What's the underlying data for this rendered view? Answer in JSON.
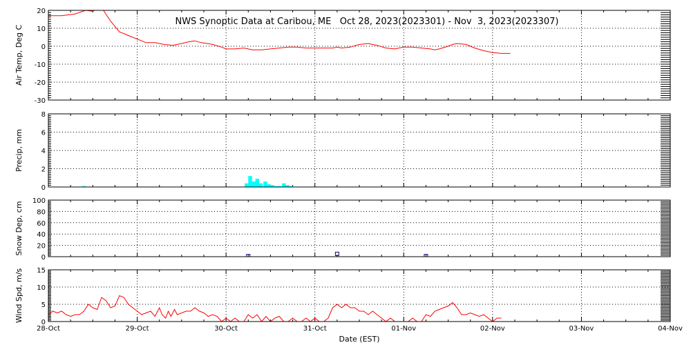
{
  "chart_data": {
    "type": "line",
    "title": "NWS Synoptic Data at Caribou, ME   Oct 28, 2023(2023301) - Nov  3, 2023(2023307)",
    "xlabel": "Date (EST)",
    "x_range": [
      "28-Oct",
      "04-Nov"
    ],
    "x_ticks": [
      "28-Oct",
      "29-Oct",
      "30-Oct",
      "31-Oct",
      "01-Nov",
      "02-Nov",
      "03-Nov",
      "04-Nov"
    ],
    "x_unit": "days since 28-Oct 00:00",
    "grid": true,
    "colors": {
      "temp": "#ff0000",
      "precip": "#00ffff",
      "snow": "#000080",
      "wind": "#ff0000"
    },
    "panels": [
      {
        "id": "air-temp",
        "ylabel": "Air Temp, Deg C",
        "type": "line",
        "ylim": [
          -30,
          20
        ],
        "yticks": [
          20,
          10,
          0,
          -10,
          -20,
          -30
        ],
        "points": [
          [
            0,
            17
          ],
          [
            0.15,
            17
          ],
          [
            0.3,
            18
          ],
          [
            0.42,
            20
          ],
          [
            0.5,
            19.5
          ],
          [
            0.55,
            21
          ],
          [
            0.62,
            20
          ],
          [
            0.7,
            14
          ],
          [
            0.8,
            8
          ],
          [
            0.9,
            6
          ],
          [
            1.0,
            4
          ],
          [
            1.05,
            3
          ],
          [
            1.1,
            2
          ],
          [
            1.2,
            2
          ],
          [
            1.3,
            1
          ],
          [
            1.4,
            0.5
          ],
          [
            1.5,
            1.5
          ],
          [
            1.58,
            2.5
          ],
          [
            1.65,
            3
          ],
          [
            1.72,
            2
          ],
          [
            1.85,
            1
          ],
          [
            1.95,
            -0.5
          ],
          [
            2.0,
            -1.5
          ],
          [
            2.1,
            -1.5
          ],
          [
            2.2,
            -1
          ],
          [
            2.3,
            -2
          ],
          [
            2.4,
            -2
          ],
          [
            2.5,
            -1.5
          ],
          [
            2.6,
            -1
          ],
          [
            2.7,
            -0.5
          ],
          [
            2.8,
            -0.5
          ],
          [
            2.9,
            -1
          ],
          [
            3.0,
            -1
          ],
          [
            3.1,
            -1
          ],
          [
            3.2,
            -1
          ],
          [
            3.25,
            -0.5
          ],
          [
            3.3,
            -1
          ],
          [
            3.4,
            -0.5
          ],
          [
            3.5,
            1
          ],
          [
            3.6,
            1.5
          ],
          [
            3.7,
            0.5
          ],
          [
            3.8,
            -1
          ],
          [
            3.9,
            -1.5
          ],
          [
            4.0,
            -0.5
          ],
          [
            4.1,
            -0.5
          ],
          [
            4.2,
            -1
          ],
          [
            4.3,
            -1.5
          ],
          [
            4.35,
            -2
          ],
          [
            4.4,
            -1.5
          ],
          [
            4.5,
            0
          ],
          [
            4.55,
            1
          ],
          [
            4.6,
            1.5
          ],
          [
            4.7,
            1
          ],
          [
            4.8,
            -1
          ],
          [
            4.9,
            -2.5
          ],
          [
            5.0,
            -3.5
          ],
          [
            5.1,
            -4
          ],
          [
            5.2,
            -4
          ]
        ]
      },
      {
        "id": "precip",
        "ylabel": "Precip, mm",
        "type": "bar",
        "ylim": [
          0,
          8
        ],
        "yticks": [
          8,
          6,
          4,
          2,
          0
        ],
        "bar_width": 0.042,
        "bars": [
          [
            0.38,
            0.1
          ],
          [
            2.21,
            0.4
          ],
          [
            2.25,
            1.2
          ],
          [
            2.29,
            0.6
          ],
          [
            2.33,
            0.9
          ],
          [
            2.37,
            0.4
          ],
          [
            2.42,
            0.6
          ],
          [
            2.46,
            0.3
          ],
          [
            2.5,
            0.2
          ],
          [
            2.54,
            0.1
          ],
          [
            2.58,
            0.1
          ],
          [
            2.63,
            0.4
          ],
          [
            2.67,
            0.2
          ],
          [
            2.71,
            0.1
          ]
        ]
      },
      {
        "id": "snow-depth",
        "ylabel": "Snow Dep, cm",
        "type": "scatter",
        "ylim": [
          0,
          100
        ],
        "yticks": [
          100,
          80,
          60,
          40,
          20,
          0
        ],
        "points": [
          [
            2.25,
            1
          ],
          [
            3.25,
            5
          ],
          [
            4.25,
            1
          ]
        ]
      },
      {
        "id": "wind-speed",
        "ylabel": "Wind Spd, m/s",
        "type": "line",
        "ylim": [
          0,
          15
        ],
        "yticks": [
          15,
          10,
          5,
          0
        ],
        "points": [
          [
            0,
            2
          ],
          [
            0.05,
            3
          ],
          [
            0.1,
            2.5
          ],
          [
            0.15,
            3
          ],
          [
            0.2,
            2
          ],
          [
            0.25,
            1.5
          ],
          [
            0.3,
            2
          ],
          [
            0.35,
            2
          ],
          [
            0.4,
            3
          ],
          [
            0.45,
            5
          ],
          [
            0.5,
            4
          ],
          [
            0.55,
            3.5
          ],
          [
            0.6,
            7
          ],
          [
            0.65,
            6
          ],
          [
            0.7,
            4
          ],
          [
            0.75,
            4.5
          ],
          [
            0.8,
            7.5
          ],
          [
            0.85,
            7
          ],
          [
            0.9,
            5
          ],
          [
            0.95,
            4
          ],
          [
            1.0,
            3
          ],
          [
            1.05,
            2
          ],
          [
            1.1,
            2.5
          ],
          [
            1.15,
            3
          ],
          [
            1.2,
            1.5
          ],
          [
            1.25,
            4
          ],
          [
            1.28,
            2
          ],
          [
            1.32,
            1
          ],
          [
            1.35,
            3
          ],
          [
            1.38,
            1.5
          ],
          [
            1.42,
            3.5
          ],
          [
            1.45,
            2
          ],
          [
            1.5,
            2.5
          ],
          [
            1.55,
            3
          ],
          [
            1.6,
            3
          ],
          [
            1.65,
            4
          ],
          [
            1.7,
            3
          ],
          [
            1.75,
            2.5
          ],
          [
            1.8,
            1.5
          ],
          [
            1.85,
            2
          ],
          [
            1.9,
            1.5
          ],
          [
            1.95,
            0
          ],
          [
            2.0,
            1
          ],
          [
            2.05,
            0
          ],
          [
            2.1,
            1
          ],
          [
            2.15,
            0
          ],
          [
            2.2,
            0
          ],
          [
            2.25,
            2
          ],
          [
            2.3,
            1
          ],
          [
            2.35,
            2
          ],
          [
            2.4,
            0
          ],
          [
            2.45,
            1.5
          ],
          [
            2.5,
            0
          ],
          [
            2.55,
            1
          ],
          [
            2.6,
            1.5
          ],
          [
            2.65,
            0
          ],
          [
            2.7,
            0
          ],
          [
            2.75,
            1
          ],
          [
            2.8,
            0
          ],
          [
            2.85,
            0
          ],
          [
            2.9,
            1
          ],
          [
            2.95,
            0
          ],
          [
            3.0,
            1
          ],
          [
            3.05,
            0
          ],
          [
            3.1,
            0
          ],
          [
            3.15,
            1
          ],
          [
            3.2,
            4
          ],
          [
            3.25,
            5
          ],
          [
            3.3,
            4
          ],
          [
            3.35,
            5
          ],
          [
            3.4,
            4
          ],
          [
            3.45,
            4
          ],
          [
            3.5,
            3
          ],
          [
            3.55,
            3
          ],
          [
            3.6,
            2
          ],
          [
            3.65,
            3
          ],
          [
            3.7,
            2
          ],
          [
            3.75,
            1
          ],
          [
            3.8,
            0
          ],
          [
            3.85,
            1
          ],
          [
            3.9,
            0
          ],
          [
            3.95,
            0
          ],
          [
            4.0,
            0
          ],
          [
            4.05,
            0
          ],
          [
            4.1,
            1
          ],
          [
            4.15,
            0
          ],
          [
            4.2,
            0
          ],
          [
            4.25,
            2
          ],
          [
            4.3,
            1.5
          ],
          [
            4.35,
            3
          ],
          [
            4.4,
            3.5
          ],
          [
            4.45,
            4
          ],
          [
            4.5,
            4.5
          ],
          [
            4.55,
            5.5
          ],
          [
            4.6,
            4
          ],
          [
            4.65,
            2
          ],
          [
            4.7,
            2
          ],
          [
            4.75,
            2.5
          ],
          [
            4.8,
            2
          ],
          [
            4.85,
            1.5
          ],
          [
            4.9,
            2
          ],
          [
            4.95,
            1
          ],
          [
            5.0,
            0
          ],
          [
            5.05,
            1
          ],
          [
            5.1,
            1
          ]
        ]
      }
    ]
  }
}
